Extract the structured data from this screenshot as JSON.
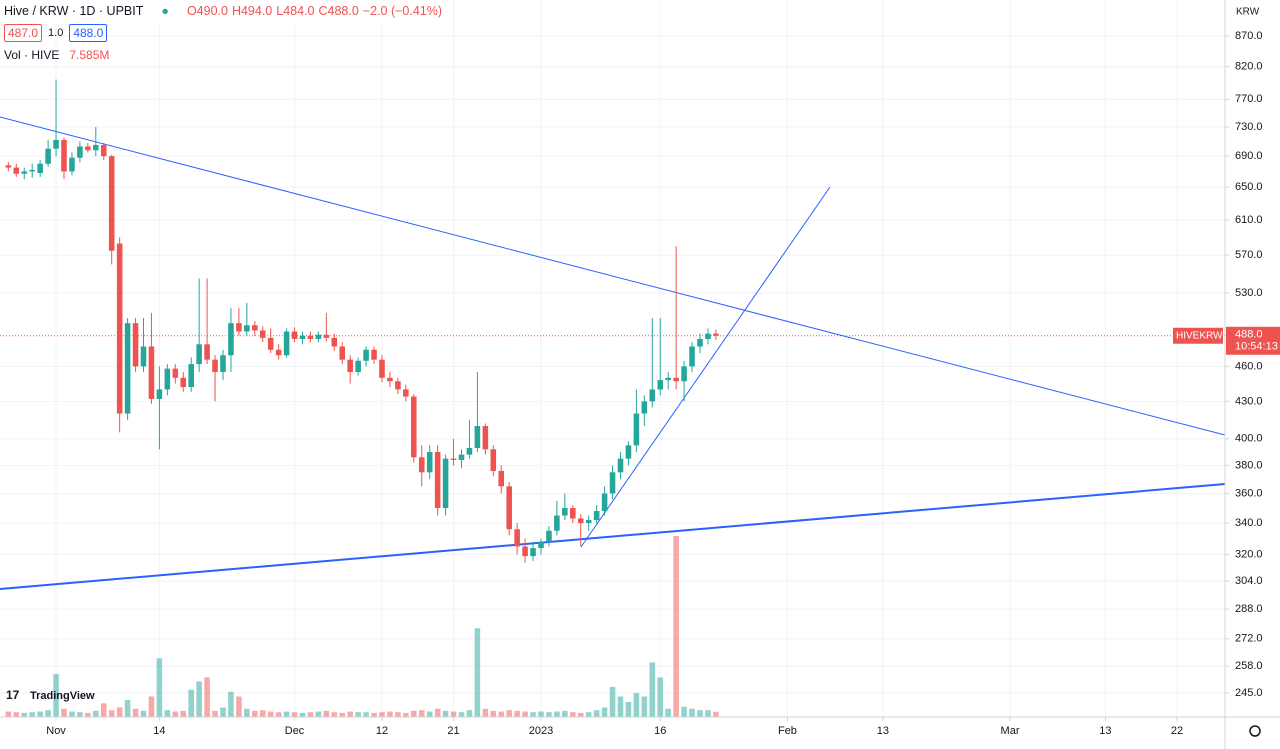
{
  "header": {
    "title": "Hive / KRW · 1D · UPBIT",
    "ohlc": [
      "O490.0",
      "H494.0",
      "L484.0",
      "C488.0",
      "−2.0 (−0.41%)"
    ],
    "sell": "487.0",
    "spread": "1.0",
    "buy": "488.0",
    "volume_title": "Vol · HIVE",
    "volume_value": "7.585M",
    "symbol_tag": "HIVEKRW",
    "price_tag": "488.0",
    "countdown": "10:54:13",
    "currency": "KRW",
    "brand": "TradingView"
  },
  "chart_data": {
    "type": "candlestick",
    "log_scale": true,
    "grid": true,
    "up_color": "#26a69a",
    "down_color": "#ef5350",
    "x": [
      -67,
      -66,
      -65,
      -64,
      -63,
      -62,
      -61,
      -60,
      -59,
      -58,
      -57,
      -56,
      -55,
      -54,
      -53,
      -52,
      -51,
      -50,
      -49,
      -48,
      -47,
      -46,
      -45,
      -44,
      -43,
      -42,
      -41,
      -40,
      -39,
      -38,
      -37,
      -36,
      -35,
      -34,
      -33,
      -32,
      -31,
      -30,
      -29,
      -28,
      -27,
      -26,
      -25,
      -24,
      -23,
      -22,
      -21,
      -20,
      -19,
      -18,
      -17,
      -16,
      -15,
      -14,
      -13,
      -12,
      -11,
      -10,
      -9,
      -8,
      -7,
      -6,
      -5,
      -4,
      -3,
      -2,
      -1,
      0,
      1,
      2,
      3,
      4,
      5,
      6,
      7,
      8,
      9,
      10,
      11,
      12,
      13,
      14,
      15,
      16,
      17,
      18,
      19,
      20,
      21,
      22
    ],
    "open": [
      678,
      675,
      667,
      670,
      668,
      680,
      700,
      712,
      670,
      688,
      703,
      698,
      705,
      690,
      583,
      420,
      500,
      460,
      478,
      432,
      440,
      458,
      450,
      442,
      462,
      480,
      466,
      455,
      470,
      500,
      492,
      498,
      493,
      486,
      475,
      470,
      492,
      485,
      488,
      485,
      489,
      486,
      478,
      466,
      455,
      465,
      475,
      466,
      450,
      447,
      440,
      434,
      386,
      375,
      390,
      350,
      385,
      384,
      388,
      393,
      410,
      392,
      376,
      365,
      336,
      325,
      319,
      324,
      328,
      335,
      345,
      350,
      343,
      340,
      342,
      348,
      360,
      375,
      385,
      395,
      420,
      430,
      440,
      448,
      450,
      447,
      460,
      478,
      485,
      490
    ],
    "high": [
      682,
      680,
      675,
      680,
      685,
      712,
      800,
      715,
      695,
      710,
      708,
      730,
      708,
      692,
      590,
      505,
      505,
      505,
      510,
      460,
      462,
      462,
      455,
      468,
      545,
      545,
      470,
      475,
      515,
      515,
      520,
      502,
      497,
      495,
      480,
      495,
      496,
      492,
      492,
      492,
      510,
      490,
      482,
      470,
      468,
      478,
      478,
      470,
      455,
      450,
      444,
      436,
      395,
      395,
      395,
      388,
      400,
      392,
      415,
      455,
      412,
      395,
      380,
      368,
      340,
      330,
      328,
      330,
      338,
      355,
      360,
      352,
      346,
      345,
      352,
      365,
      380,
      390,
      398,
      440,
      435,
      505,
      505,
      455,
      580,
      465,
      482,
      490,
      495,
      494
    ],
    "low": [
      670,
      663,
      660,
      662,
      663,
      676,
      690,
      660,
      665,
      682,
      695,
      690,
      685,
      560,
      405,
      415,
      455,
      455,
      428,
      392,
      435,
      445,
      438,
      438,
      455,
      462,
      430,
      448,
      455,
      488,
      488,
      488,
      482,
      472,
      466,
      468,
      482,
      480,
      482,
      482,
      483,
      474,
      462,
      445,
      452,
      460,
      462,
      446,
      442,
      436,
      430,
      382,
      365,
      370,
      345,
      345,
      380,
      378,
      385,
      390,
      388,
      372,
      360,
      332,
      320,
      315,
      316,
      320,
      325,
      332,
      342,
      340,
      325,
      335,
      340,
      345,
      356,
      370,
      380,
      390,
      410,
      425,
      435,
      440,
      440,
      430,
      455,
      472,
      480,
      484
    ],
    "close": [
      675,
      667,
      670,
      672,
      680,
      700,
      712,
      670,
      688,
      703,
      698,
      705,
      690,
      575,
      420,
      500,
      460,
      478,
      432,
      440,
      458,
      450,
      442,
      462,
      480,
      466,
      455,
      470,
      500,
      492,
      498,
      493,
      486,
      475,
      470,
      492,
      485,
      488,
      485,
      489,
      486,
      478,
      466,
      455,
      465,
      475,
      466,
      450,
      447,
      440,
      434,
      386,
      375,
      390,
      350,
      385,
      384,
      388,
      393,
      410,
      392,
      376,
      365,
      336,
      325,
      319,
      324,
      328,
      335,
      345,
      350,
      343,
      340,
      342,
      348,
      360,
      375,
      385,
      395,
      420,
      430,
      440,
      448,
      450,
      447,
      460,
      478,
      485,
      490,
      488
    ],
    "volume": [
      8,
      7,
      6,
      7,
      8,
      10,
      63,
      12,
      8,
      7,
      6,
      9,
      20,
      10,
      14,
      25,
      12,
      9,
      30,
      86,
      10,
      8,
      9,
      40,
      52,
      58,
      9,
      14,
      37,
      30,
      12,
      9,
      10,
      8,
      7,
      8,
      7,
      6,
      7,
      8,
      9,
      7,
      6,
      8,
      7,
      7,
      6,
      7,
      8,
      7,
      6,
      9,
      10,
      8,
      12,
      9,
      8,
      7,
      10,
      130,
      12,
      9,
      8,
      10,
      9,
      8,
      7,
      8,
      7,
      8,
      9,
      7,
      6,
      7,
      10,
      14,
      44,
      30,
      22,
      35,
      30,
      80,
      58,
      12,
      265,
      15,
      12,
      10,
      10,
      7.585
    ],
    "ylim": [
      233.9,
      932.6
    ],
    "yticks": [
      {
        "value": 870,
        "label": "870.0"
      },
      {
        "value": 820,
        "label": "820.0"
      },
      {
        "value": 770,
        "label": "770.0"
      },
      {
        "value": 730,
        "label": "730.0"
      },
      {
        "value": 690,
        "label": "690.0"
      },
      {
        "value": 650,
        "label": "650.0"
      },
      {
        "value": 610,
        "label": "610.0"
      },
      {
        "value": 570,
        "label": "570.0"
      },
      {
        "value": 530,
        "label": "530.0"
      },
      {
        "value": 460,
        "label": "460.0"
      },
      {
        "value": 430,
        "label": "430.0"
      },
      {
        "value": 400,
        "label": "400.0"
      },
      {
        "value": 380,
        "label": "380.0"
      },
      {
        "value": 360,
        "label": "360.0"
      },
      {
        "value": 340,
        "label": "340.0"
      },
      {
        "value": 320,
        "label": "320.0"
      },
      {
        "value": 304,
        "label": "304.0"
      },
      {
        "value": 288,
        "label": "288.0"
      },
      {
        "value": 272,
        "label": "272.0"
      },
      {
        "value": 258,
        "label": "258.0"
      },
      {
        "value": 245,
        "label": "245.0"
      }
    ],
    "xlim": [
      -68.05,
      86.04
    ],
    "xticks": [
      {
        "value": -61,
        "label": "Nov"
      },
      {
        "value": -48,
        "label": "14"
      },
      {
        "value": -31,
        "label": "Dec"
      },
      {
        "value": -20,
        "label": "12"
      },
      {
        "value": -11,
        "label": "21"
      },
      {
        "value": 0,
        "label": "2023"
      },
      {
        "value": 15,
        "label": "16"
      },
      {
        "value": 31,
        "label": "Feb"
      },
      {
        "value": 43,
        "label": "13"
      },
      {
        "value": 59,
        "label": "Mar"
      },
      {
        "value": 71,
        "label": "13"
      },
      {
        "value": 80,
        "label": "22"
      }
    ],
    "y2lim": [
      0,
      1050
    ]
  }
}
